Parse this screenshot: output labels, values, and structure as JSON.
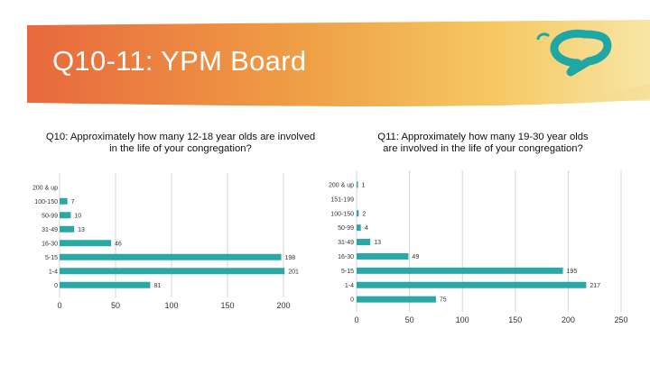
{
  "slide": {
    "title": "Q10-11: YPM Board",
    "logo_icon": "speech-bubble-logo-icon",
    "colors": {
      "bar": "#2aa8a4",
      "banner_left": "#e8683c",
      "banner_right": "#f7e3a0",
      "logo": "#1fa7a5"
    }
  },
  "chart_data": [
    {
      "type": "bar",
      "orientation": "horizontal",
      "title_lines": [
        "Q10: Approximately how many 12-18 year olds are involved",
        "in the life of your congregation?"
      ],
      "categories": [
        "200 & up",
        "100-150",
        "50-99",
        "31-49",
        "16-30",
        "5-15",
        "1-4",
        "0"
      ],
      "values": [
        null,
        7,
        10,
        13,
        46,
        198,
        201,
        81
      ],
      "value_labels": [
        "",
        "7",
        "10",
        "13",
        "46",
        "198",
        "201",
        "81"
      ],
      "xticks": [
        "0",
        "50",
        "100",
        "150",
        "200"
      ],
      "xlim": [
        0,
        200
      ],
      "grid": "vertical"
    },
    {
      "type": "bar",
      "orientation": "horizontal",
      "title_lines": [
        "Q11: Approximately how many 19-30 year olds",
        "are involved in the life of your congregation?"
      ],
      "categories": [
        "200 & up",
        "151-199",
        "100-150",
        "50-99",
        "31-49",
        "16-30",
        "5-15",
        "1-4",
        "0"
      ],
      "values": [
        1,
        null,
        2,
        4,
        13,
        49,
        195,
        217,
        75
      ],
      "value_labels": [
        "1",
        "",
        "2",
        "4",
        "13",
        "49",
        "195",
        "217",
        "75"
      ],
      "xticks": [
        "0",
        "50",
        "100",
        "150",
        "200",
        "250"
      ],
      "xlim": [
        0,
        250
      ],
      "grid": "vertical"
    }
  ]
}
